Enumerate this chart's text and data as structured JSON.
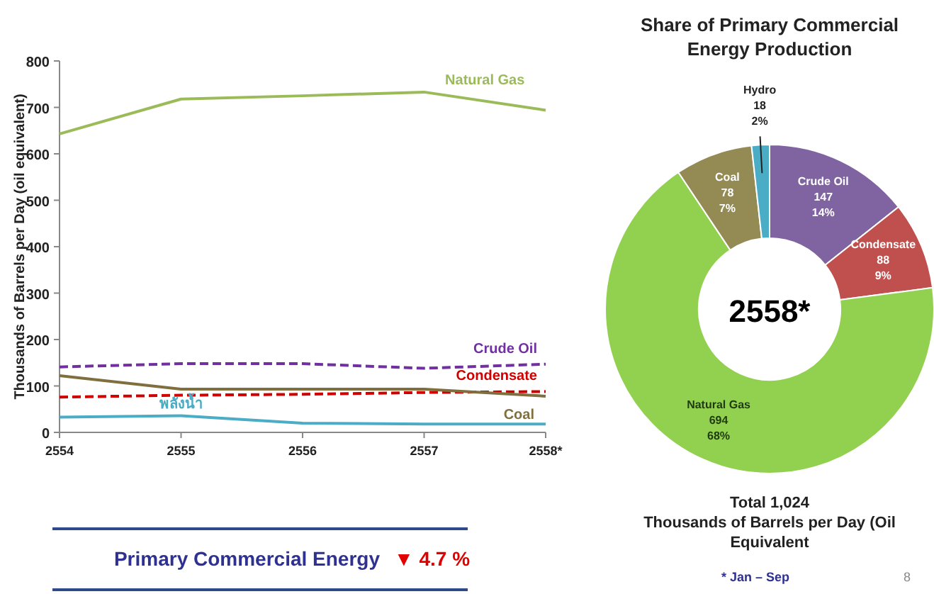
{
  "chart_data": [
    {
      "type": "line",
      "ylabel": "Thousands of Barrels per Day (oil equivalent)",
      "categories": [
        "2554",
        "2555",
        "2556",
        "2557",
        "2558*"
      ],
      "ylim": [
        0,
        800
      ],
      "yticks": [
        0,
        100,
        200,
        300,
        400,
        500,
        600,
        700,
        800
      ],
      "series": [
        {
          "name": "Natural Gas",
          "color": "#9bbb59",
          "line_style": "solid",
          "values": [
            643,
            718,
            725,
            733,
            694
          ]
        },
        {
          "name": "Crude Oil",
          "color": "#7030a0",
          "line_style": "dashed",
          "values": [
            141,
            148,
            148,
            138,
            147
          ]
        },
        {
          "name": "Condensate",
          "color": "#d00000",
          "line_style": "dashed",
          "values": [
            76,
            80,
            82,
            86,
            88
          ]
        },
        {
          "name": "Coal",
          "color": "#7f6f3f",
          "line_style": "solid",
          "values": [
            122,
            93,
            93,
            93,
            78
          ]
        },
        {
          "name": "พลังน้ำ",
          "color": "#4bacc6",
          "line_style": "solid",
          "values": [
            33,
            36,
            20,
            18,
            18
          ]
        }
      ]
    },
    {
      "type": "donut",
      "title": "Share of Primary Commercial Energy Production",
      "categories": [
        "Crude Oil",
        "Condensate",
        "Natural Gas",
        "Coal",
        "Hydro"
      ],
      "values": [
        147,
        88,
        694,
        78,
        18
      ],
      "colors": [
        "#8064a2",
        "#c0504d",
        "#92d050",
        "#948a54",
        "#4bacc6"
      ],
      "value_labels": [
        "147\n14%",
        "88\n9%",
        "694\n68%",
        "78\n7%",
        "18\n2%"
      ],
      "annotations": [
        "2558*",
        "Total 1,024\nThousands of Barrels per Day (Oil\nEquivalent",
        "* Jan – Sep",
        "8"
      ]
    },
    {
      "type": "other",
      "title": "Primary Commercial Energy",
      "annotations": [
        "▼ 4.7 %"
      ]
    }
  ]
}
